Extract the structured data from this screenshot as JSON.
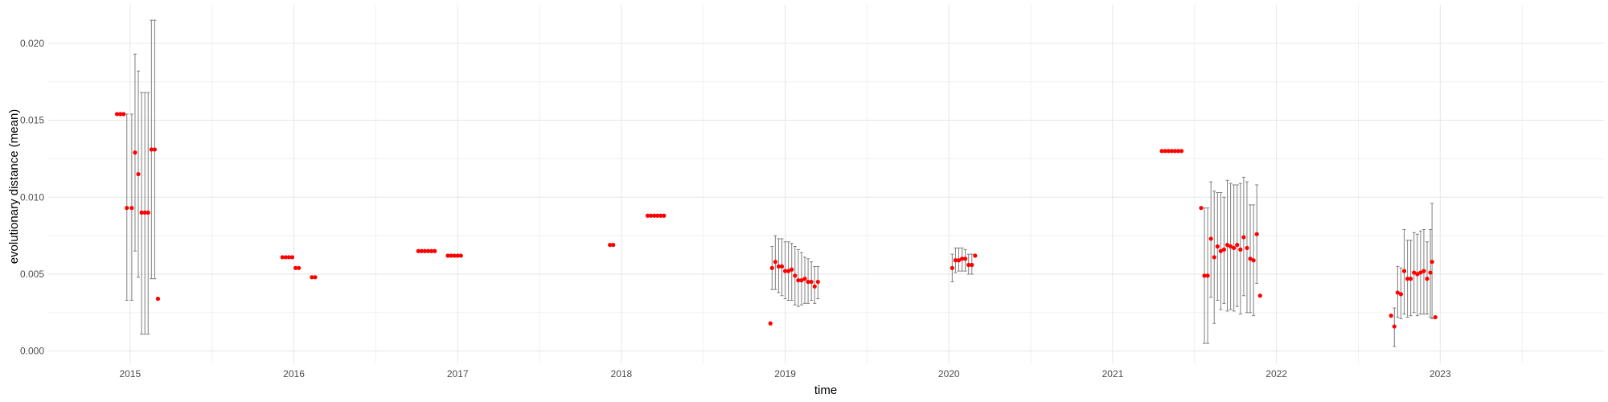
{
  "chart_data": {
    "type": "scatter",
    "title": "",
    "xlabel": "time",
    "ylabel": "evolutionary distance (mean)",
    "xlim": [
      2014.5,
      2024.0
    ],
    "ylim": [
      -0.0008,
      0.0225
    ],
    "grid": true,
    "legend": "none",
    "x_ticks": [
      2015,
      2016,
      2017,
      2018,
      2019,
      2020,
      2021,
      2022,
      2023
    ],
    "x_tick_labels": [
      "2015",
      "2016",
      "2017",
      "2018",
      "2019",
      "2020",
      "2021",
      "2022",
      "2023"
    ],
    "y_ticks": [
      0.0,
      0.005,
      0.01,
      0.015,
      0.02
    ],
    "y_tick_labels": [
      "0.000",
      "0.005",
      "0.010",
      "0.015",
      "0.020"
    ],
    "colors": {
      "point": "#ff0000",
      "errorbar": "#7f7f7f",
      "grid": "#e6e6e6",
      "background": "#ffffff"
    },
    "points": [
      {
        "x": 2014.92,
        "y": 0.0154
      },
      {
        "x": 2014.94,
        "y": 0.0154
      },
      {
        "x": 2014.96,
        "y": 0.0154
      },
      {
        "x": 2014.98,
        "y": 0.0093,
        "ymin": 0.0033,
        "ymax": 0.0154
      },
      {
        "x": 2015.01,
        "y": 0.0093,
        "ymin": 0.0033,
        "ymax": 0.0154
      },
      {
        "x": 2015.03,
        "y": 0.0129,
        "ymin": 0.0065,
        "ymax": 0.0193
      },
      {
        "x": 2015.05,
        "y": 0.0115,
        "ymin": 0.0048,
        "ymax": 0.0182
      },
      {
        "x": 2015.07,
        "y": 0.009,
        "ymin": 0.0011,
        "ymax": 0.0168
      },
      {
        "x": 2015.09,
        "y": 0.009,
        "ymin": 0.0011,
        "ymax": 0.0168
      },
      {
        "x": 2015.11,
        "y": 0.009,
        "ymin": 0.0011,
        "ymax": 0.0168
      },
      {
        "x": 2015.13,
        "y": 0.0131,
        "ymin": 0.0047,
        "ymax": 0.0215
      },
      {
        "x": 2015.15,
        "y": 0.0131,
        "ymin": 0.0047,
        "ymax": 0.0215
      },
      {
        "x": 2015.17,
        "y": 0.0034
      },
      {
        "x": 2015.93,
        "y": 0.0061
      },
      {
        "x": 2015.95,
        "y": 0.0061
      },
      {
        "x": 2015.97,
        "y": 0.0061
      },
      {
        "x": 2015.99,
        "y": 0.0061
      },
      {
        "x": 2016.01,
        "y": 0.0054
      },
      {
        "x": 2016.03,
        "y": 0.0054
      },
      {
        "x": 2016.11,
        "y": 0.0048
      },
      {
        "x": 2016.13,
        "y": 0.0048
      },
      {
        "x": 2016.76,
        "y": 0.0065
      },
      {
        "x": 2016.78,
        "y": 0.0065
      },
      {
        "x": 2016.8,
        "y": 0.0065
      },
      {
        "x": 2016.82,
        "y": 0.0065
      },
      {
        "x": 2016.84,
        "y": 0.0065
      },
      {
        "x": 2016.86,
        "y": 0.0065
      },
      {
        "x": 2016.94,
        "y": 0.0062
      },
      {
        "x": 2016.96,
        "y": 0.0062
      },
      {
        "x": 2016.98,
        "y": 0.0062
      },
      {
        "x": 2017.0,
        "y": 0.0062
      },
      {
        "x": 2017.02,
        "y": 0.0062
      },
      {
        "x": 2017.93,
        "y": 0.0069
      },
      {
        "x": 2017.95,
        "y": 0.0069
      },
      {
        "x": 2018.16,
        "y": 0.0088
      },
      {
        "x": 2018.18,
        "y": 0.0088
      },
      {
        "x": 2018.2,
        "y": 0.0088
      },
      {
        "x": 2018.22,
        "y": 0.0088
      },
      {
        "x": 2018.24,
        "y": 0.0088
      },
      {
        "x": 2018.26,
        "y": 0.0088
      },
      {
        "x": 2018.91,
        "y": 0.0018
      },
      {
        "x": 2018.92,
        "y": 0.0054,
        "ymin": 0.004,
        "ymax": 0.0068
      },
      {
        "x": 2018.94,
        "y": 0.0058,
        "ymin": 0.004,
        "ymax": 0.0075
      },
      {
        "x": 2018.96,
        "y": 0.0055,
        "ymin": 0.0038,
        "ymax": 0.0073
      },
      {
        "x": 2018.98,
        "y": 0.0055,
        "ymin": 0.0036,
        "ymax": 0.0073
      },
      {
        "x": 2019.0,
        "y": 0.0052,
        "ymin": 0.0034,
        "ymax": 0.0071
      },
      {
        "x": 2019.02,
        "y": 0.0052,
        "ymin": 0.0033,
        "ymax": 0.0071
      },
      {
        "x": 2019.04,
        "y": 0.0053,
        "ymin": 0.0033,
        "ymax": 0.007
      },
      {
        "x": 2019.06,
        "y": 0.0049,
        "ymin": 0.003,
        "ymax": 0.0068
      },
      {
        "x": 2019.08,
        "y": 0.0046,
        "ymin": 0.0029,
        "ymax": 0.0066
      },
      {
        "x": 2019.1,
        "y": 0.0046,
        "ymin": 0.003,
        "ymax": 0.0064
      },
      {
        "x": 2019.12,
        "y": 0.0047,
        "ymin": 0.0031,
        "ymax": 0.0061
      },
      {
        "x": 2019.14,
        "y": 0.0045,
        "ymin": 0.0031,
        "ymax": 0.006
      },
      {
        "x": 2019.16,
        "y": 0.0045,
        "ymin": 0.0033,
        "ymax": 0.0058
      },
      {
        "x": 2019.18,
        "y": 0.0042,
        "ymin": 0.0031,
        "ymax": 0.0055
      },
      {
        "x": 2019.2,
        "y": 0.0045,
        "ymin": 0.0034,
        "ymax": 0.0055
      },
      {
        "x": 2020.02,
        "y": 0.0054,
        "ymin": 0.0045,
        "ymax": 0.0063
      },
      {
        "x": 2020.04,
        "y": 0.0059,
        "ymin": 0.0051,
        "ymax": 0.0067
      },
      {
        "x": 2020.06,
        "y": 0.0059,
        "ymin": 0.0052,
        "ymax": 0.0067
      },
      {
        "x": 2020.08,
        "y": 0.006,
        "ymin": 0.0052,
        "ymax": 0.0067
      },
      {
        "x": 2020.1,
        "y": 0.006,
        "ymin": 0.0052,
        "ymax": 0.0066
      },
      {
        "x": 2020.12,
        "y": 0.0056,
        "ymin": 0.005,
        "ymax": 0.0063
      },
      {
        "x": 2020.14,
        "y": 0.0056,
        "ymin": 0.005,
        "ymax": 0.0063
      },
      {
        "x": 2020.16,
        "y": 0.0062
      },
      {
        "x": 2021.3,
        "y": 0.013
      },
      {
        "x": 2021.32,
        "y": 0.013
      },
      {
        "x": 2021.34,
        "y": 0.013
      },
      {
        "x": 2021.36,
        "y": 0.013
      },
      {
        "x": 2021.38,
        "y": 0.013
      },
      {
        "x": 2021.4,
        "y": 0.013
      },
      {
        "x": 2021.42,
        "y": 0.013
      },
      {
        "x": 2021.54,
        "y": 0.0093
      },
      {
        "x": 2021.56,
        "y": 0.0049,
        "ymin": 0.0005,
        "ymax": 0.0093
      },
      {
        "x": 2021.58,
        "y": 0.0049,
        "ymin": 0.0005,
        "ymax": 0.0093
      },
      {
        "x": 2021.6,
        "y": 0.0073,
        "ymin": 0.0035,
        "ymax": 0.011
      },
      {
        "x": 2021.62,
        "y": 0.0061,
        "ymin": 0.0018,
        "ymax": 0.0104
      },
      {
        "x": 2021.64,
        "y": 0.0068,
        "ymin": 0.0033,
        "ymax": 0.0103
      },
      {
        "x": 2021.66,
        "y": 0.0065,
        "ymin": 0.0027,
        "ymax": 0.0103
      },
      {
        "x": 2021.68,
        "y": 0.0066,
        "ymin": 0.0031,
        "ymax": 0.01
      },
      {
        "x": 2021.7,
        "y": 0.0069,
        "ymin": 0.0026,
        "ymax": 0.0111
      },
      {
        "x": 2021.72,
        "y": 0.0068,
        "ymin": 0.0027,
        "ymax": 0.0109
      },
      {
        "x": 2021.74,
        "y": 0.0067,
        "ymin": 0.0026,
        "ymax": 0.0108
      },
      {
        "x": 2021.76,
        "y": 0.0069,
        "ymin": 0.0029,
        "ymax": 0.0108
      },
      {
        "x": 2021.78,
        "y": 0.0066,
        "ymin": 0.0024,
        "ymax": 0.0109
      },
      {
        "x": 2021.8,
        "y": 0.0074,
        "ymin": 0.0036,
        "ymax": 0.0113
      },
      {
        "x": 2021.82,
        "y": 0.0067,
        "ymin": 0.0025,
        "ymax": 0.011
      },
      {
        "x": 2021.84,
        "y": 0.006,
        "ymin": 0.0025,
        "ymax": 0.0095
      },
      {
        "x": 2021.86,
        "y": 0.0059,
        "ymin": 0.0023,
        "ymax": 0.0095
      },
      {
        "x": 2021.88,
        "y": 0.0076,
        "ymin": 0.0044,
        "ymax": 0.0108
      },
      {
        "x": 2021.9,
        "y": 0.0036
      },
      {
        "x": 2022.7,
        "y": 0.0023
      },
      {
        "x": 2022.72,
        "y": 0.0016,
        "ymin": 0.0003,
        "ymax": 0.0028
      },
      {
        "x": 2022.74,
        "y": 0.0038,
        "ymin": 0.0022,
        "ymax": 0.0055
      },
      {
        "x": 2022.76,
        "y": 0.0037,
        "ymin": 0.0021,
        "ymax": 0.0054
      },
      {
        "x": 2022.78,
        "y": 0.0052,
        "ymin": 0.0024,
        "ymax": 0.0079
      },
      {
        "x": 2022.8,
        "y": 0.0047,
        "ymin": 0.0022,
        "ymax": 0.0072
      },
      {
        "x": 2022.82,
        "y": 0.0047,
        "ymin": 0.0023,
        "ymax": 0.0072
      },
      {
        "x": 2022.84,
        "y": 0.0051,
        "ymin": 0.0025,
        "ymax": 0.0077
      },
      {
        "x": 2022.86,
        "y": 0.005,
        "ymin": 0.0023,
        "ymax": 0.0076
      },
      {
        "x": 2022.88,
        "y": 0.0051,
        "ymin": 0.0024,
        "ymax": 0.0078
      },
      {
        "x": 2022.9,
        "y": 0.0052,
        "ymin": 0.0024,
        "ymax": 0.0079
      },
      {
        "x": 2022.92,
        "y": 0.0047,
        "ymin": 0.0024,
        "ymax": 0.0071
      },
      {
        "x": 2022.94,
        "y": 0.0051,
        "ymin": 0.0022,
        "ymax": 0.0079
      },
      {
        "x": 2022.95,
        "y": 0.0058,
        "ymin": 0.0021,
        "ymax": 0.0096
      },
      {
        "x": 2022.97,
        "y": 0.0022
      }
    ]
  }
}
